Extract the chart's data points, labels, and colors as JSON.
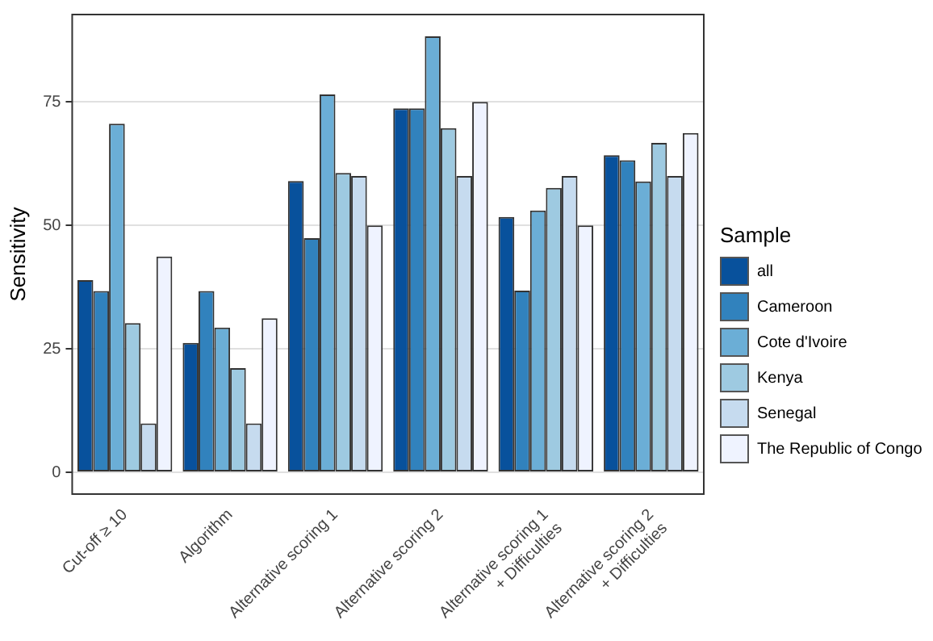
{
  "chart_data": {
    "type": "bar",
    "ylabel": "Sensitivity",
    "legend_title": "Sample",
    "categories": [
      "Cut-off ≥ 10",
      "Algorithm",
      "Alternative scoring 1",
      "Alternative scoring 2",
      "Alternative scoring 1\n+ Difficulties",
      "Alternative scoring 2\n+ Difficulties"
    ],
    "series": [
      {
        "name": "all",
        "color": "#08519c",
        "values": [
          38.9,
          26.2,
          59,
          73.7,
          51.7,
          64.2
        ]
      },
      {
        "name": "Cameroon",
        "color": "#3182bd",
        "values": [
          36.7,
          36.7,
          47.4,
          73.7,
          36.8,
          63.2
        ]
      },
      {
        "name": "Cote d'Ivoire",
        "color": "#6baed6",
        "values": [
          70.6,
          29.3,
          76.5,
          88.3,
          53,
          58.9
        ]
      },
      {
        "name": "Kenya",
        "color": "#9ecae1",
        "values": [
          30.2,
          21.1,
          60.6,
          69.7,
          57.6,
          66.7
        ]
      },
      {
        "name": "Senegal",
        "color": "#c6dbef",
        "values": [
          9.9,
          9.9,
          60,
          60,
          60,
          60
        ]
      },
      {
        "name": "The Republic of Congo",
        "color": "#eff3ff",
        "values": [
          43.7,
          31.2,
          50,
          75,
          50,
          68.7
        ]
      }
    ],
    "ylim": [
      -4.4,
      92.7
    ],
    "yticks": [
      0,
      25,
      50,
      75
    ],
    "grid": "y",
    "legend": "right"
  }
}
